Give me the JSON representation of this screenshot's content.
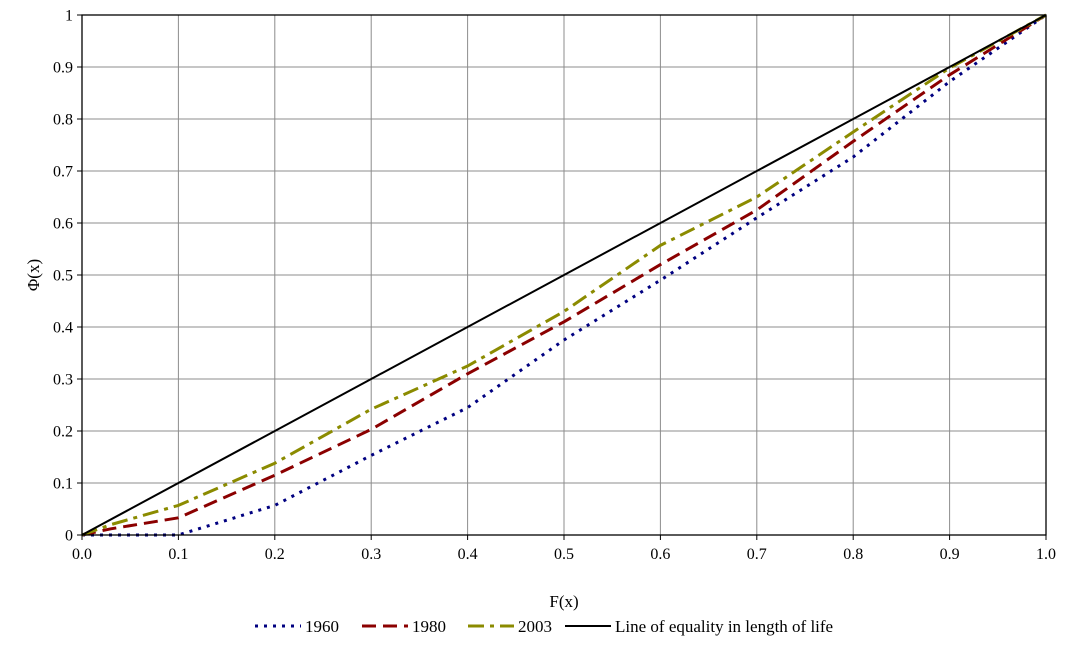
{
  "chart_data": {
    "type": "line",
    "title": "",
    "xlabel": "F(x)",
    "ylabel": "Φ(x)",
    "xlim": [
      0,
      1
    ],
    "ylim": [
      0,
      1
    ],
    "x_ticks": [
      "0.0",
      "0.1",
      "0.2",
      "0.3",
      "0.4",
      "0.5",
      "0.6",
      "0.7",
      "0.8",
      "0.9",
      "1.0"
    ],
    "y_ticks": [
      "0",
      "0.1",
      "0.2",
      "0.3",
      "0.4",
      "0.5",
      "0.6",
      "0.7",
      "0.8",
      "0.9",
      "1"
    ],
    "grid": true,
    "legend_position": "bottom",
    "series": [
      {
        "name": "1960",
        "color": "#000080",
        "style": "dotted",
        "x": [
          0.0,
          0.1,
          0.2,
          0.3,
          0.4,
          0.5,
          0.6,
          0.7,
          0.8,
          0.9,
          1.0
        ],
        "y": [
          0.0,
          0.0,
          0.057,
          0.153,
          0.245,
          0.375,
          0.49,
          0.61,
          0.727,
          0.872,
          1.0
        ]
      },
      {
        "name": "1980",
        "color": "#8b0000",
        "style": "dashed",
        "x": [
          0.0,
          0.03,
          0.1,
          0.2,
          0.3,
          0.4,
          0.5,
          0.6,
          0.7,
          0.8,
          0.9,
          1.0
        ],
        "y": [
          0.0,
          0.012,
          0.033,
          0.115,
          0.203,
          0.31,
          0.41,
          0.52,
          0.625,
          0.757,
          0.885,
          1.0
        ]
      },
      {
        "name": "2003",
        "color": "#8b8b00",
        "style": "dash-dot",
        "x": [
          0.0,
          0.03,
          0.1,
          0.2,
          0.3,
          0.4,
          0.5,
          0.6,
          0.7,
          0.8,
          0.9,
          1.0
        ],
        "y": [
          0.0,
          0.02,
          0.057,
          0.138,
          0.242,
          0.325,
          0.43,
          0.557,
          0.65,
          0.775,
          0.898,
          1.0
        ]
      },
      {
        "name": "Line of equality in length of life",
        "color": "#000000",
        "style": "solid",
        "x": [
          0.0,
          1.0
        ],
        "y": [
          0.0,
          1.0
        ]
      }
    ]
  }
}
